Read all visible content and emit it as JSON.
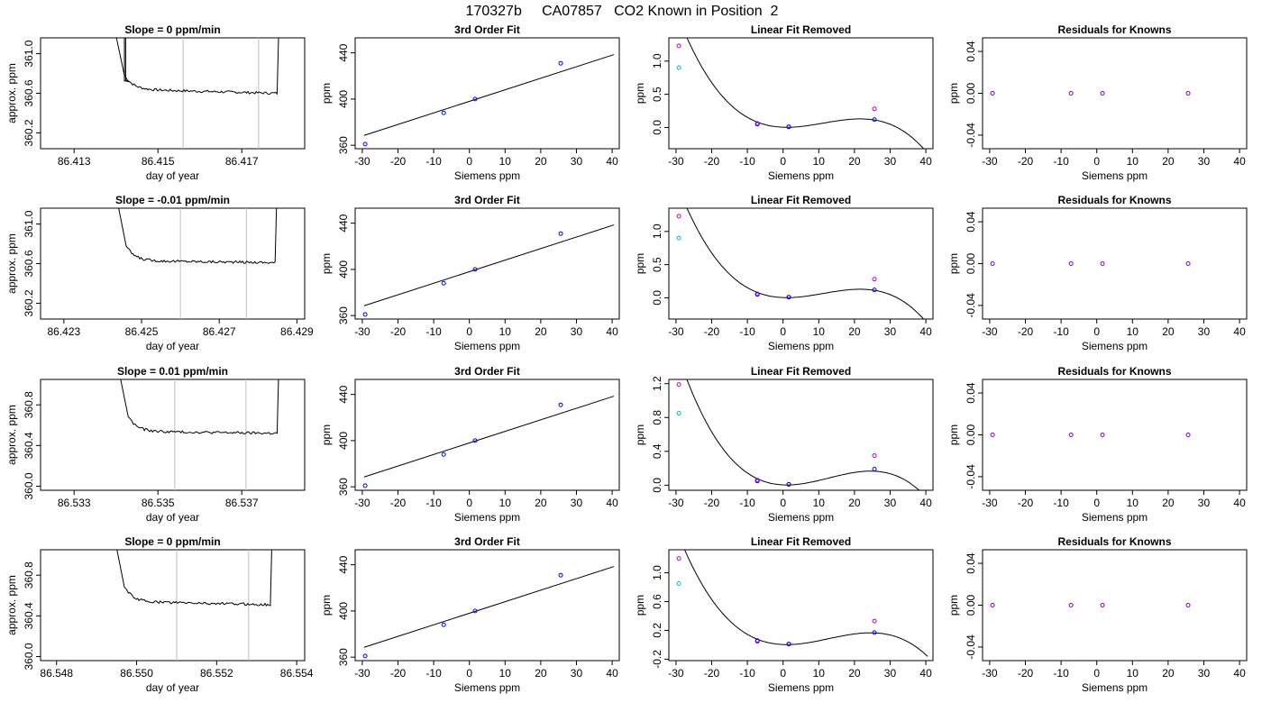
{
  "figure_title": "170327b     CA07857   CO2 Known in Position  2",
  "colors": {
    "line": "#000000",
    "blue": "#0000ff",
    "cyan": "#00bcd4",
    "magenta": "#c000c0",
    "purple": "#7a00d0",
    "gray": "#bebebe"
  },
  "chart_data": [
    {
      "type": "line",
      "row": 1,
      "panel": "trace",
      "title": "Slope =  0  ppm/min",
      "xlabel": "day of year",
      "ylabel": "approx. ppm",
      "xlim": [
        86.4122,
        86.4185
      ],
      "ylim": [
        360.04,
        361.16
      ],
      "xticks": [
        86.413,
        86.415,
        86.417
      ],
      "xtick_labels": [
        "86.413",
        "86.415",
        "86.417"
      ],
      "yticks": [
        360.2,
        360.6,
        361.0
      ],
      "ytick_labels": [
        "360.2",
        "360.6",
        "361.0"
      ],
      "vlines": [
        86.4156,
        86.4174
      ],
      "trace": {
        "x_start": 86.414,
        "x_end": 86.4179,
        "level": 360.61,
        "drift_start": 0.03,
        "drift_end": -0.01,
        "spike_x": 86.4142
      }
    },
    {
      "type": "line",
      "row": 1,
      "panel": "fit",
      "title": "3rd Order Fit",
      "xlabel": "Siemens ppm",
      "ylabel": "ppm",
      "xlim": [
        -32,
        42
      ],
      "ylim": [
        357,
        453
      ],
      "xticks": [
        -30,
        -20,
        -10,
        0,
        10,
        20,
        30,
        40
      ],
      "xtick_labels": [
        "-30",
        "-20",
        "-10",
        "0",
        "10",
        "20",
        "30",
        "40"
      ],
      "yticks": [
        360,
        400,
        440
      ],
      "ytick_labels": [
        "360",
        "400",
        "440"
      ],
      "line": {
        "slope": 1.0,
        "intercept": 398,
        "x_from": -29.5,
        "x_to": 40.5
      },
      "points": [
        {
          "x": -29.2,
          "y": 361
        },
        {
          "x": -7.2,
          "y": 388
        },
        {
          "x": 1.6,
          "y": 400
        },
        {
          "x": 25.6,
          "y": 431
        }
      ]
    },
    {
      "type": "line",
      "row": 1,
      "panel": "residual_curve",
      "title": "Linear Fit Removed",
      "xlabel": "Siemens ppm",
      "ylabel": "ppm",
      "xlim": [
        -32,
        42
      ],
      "ylim": [
        -0.32,
        1.35
      ],
      "xticks": [
        -30,
        -20,
        -10,
        0,
        10,
        20,
        30,
        40
      ],
      "xtick_labels": [
        "-30",
        "-20",
        "-10",
        "0",
        "10",
        "20",
        "30",
        "40"
      ],
      "yticks": [
        0.0,
        0.5,
        1.0
      ],
      "ytick_labels": [
        "0.0",
        "0.5",
        "1.0"
      ],
      "curve": {
        "c0": 0.0035,
        "c1": -0.002,
        "c2": 0.000995,
        "c3": -2.93e-05,
        "x_from": -29.2,
        "x_to": 40.5
      },
      "blue_points": [
        {
          "x": -7.2,
          "y": 0.05
        },
        {
          "x": 1.6,
          "y": 0.01
        },
        {
          "x": 25.6,
          "y": 0.12
        }
      ],
      "magenta_points": [
        {
          "x": -29.2,
          "y": 1.23
        },
        {
          "x": -7.2,
          "y": 0.06
        },
        {
          "x": 1.6,
          "y": 0.01
        },
        {
          "x": 25.6,
          "y": 0.28
        }
      ],
      "cyan_points": [
        {
          "x": -29.2,
          "y": 0.9
        }
      ]
    },
    {
      "type": "scatter",
      "row": 1,
      "panel": "residuals",
      "title": "Residuals for Knowns",
      "xlabel": "Siemens ppm",
      "ylabel": "ppm",
      "xlim": [
        -32,
        42
      ],
      "ylim": [
        -0.053,
        0.053
      ],
      "xticks": [
        -30,
        -20,
        -10,
        0,
        10,
        20,
        30,
        40
      ],
      "xtick_labels": [
        "-30",
        "-20",
        "-10",
        "0",
        "10",
        "20",
        "30",
        "40"
      ],
      "yticks": [
        -0.04,
        0.0,
        0.04
      ],
      "ytick_labels": [
        "-0.04",
        "0.00",
        "0.04"
      ],
      "points": [
        {
          "x": -29.2,
          "y": 0
        },
        {
          "x": -7.2,
          "y": 0
        },
        {
          "x": 1.6,
          "y": 0
        },
        {
          "x": 25.6,
          "y": 0
        }
      ]
    },
    {
      "type": "line",
      "row": 2,
      "panel": "trace",
      "title": "Slope =  -0.01  ppm/min",
      "xlabel": "day of year",
      "ylabel": "approx. ppm",
      "xlim": [
        86.4224,
        86.4292
      ],
      "ylim": [
        360.04,
        361.16
      ],
      "xticks": [
        86.423,
        86.425,
        86.427,
        86.429
      ],
      "xtick_labels": [
        "86.423",
        "86.425",
        "86.427",
        "86.429"
      ],
      "yticks": [
        360.2,
        360.6,
        361.0
      ],
      "ytick_labels": [
        "360.2",
        "360.6",
        "361.0"
      ],
      "vlines": [
        86.426,
        86.4277
      ],
      "trace": {
        "x_start": 86.4244,
        "x_end": 86.4285,
        "level": 360.61,
        "drift_start": 0.02,
        "drift_end": 0.0,
        "spike_x": null
      }
    },
    {
      "type": "line",
      "row": 2,
      "panel": "fit",
      "title": "3rd Order Fit",
      "xlabel": "Siemens ppm",
      "ylabel": "ppm",
      "xlim": [
        -32,
        42
      ],
      "ylim": [
        357,
        453
      ],
      "xticks": [
        -30,
        -20,
        -10,
        0,
        10,
        20,
        30,
        40
      ],
      "xtick_labels": [
        "-30",
        "-20",
        "-10",
        "0",
        "10",
        "20",
        "30",
        "40"
      ],
      "yticks": [
        360,
        400,
        440
      ],
      "ytick_labels": [
        "360",
        "400",
        "440"
      ],
      "line": {
        "slope": 1.0,
        "intercept": 398,
        "x_from": -29.5,
        "x_to": 40.5
      },
      "points": [
        {
          "x": -29.2,
          "y": 361
        },
        {
          "x": -7.2,
          "y": 388
        },
        {
          "x": 1.6,
          "y": 400
        },
        {
          "x": 25.6,
          "y": 431
        }
      ]
    },
    {
      "type": "line",
      "row": 2,
      "panel": "residual_curve",
      "title": "Linear Fit Removed",
      "xlabel": "Siemens ppm",
      "ylabel": "ppm",
      "xlim": [
        -32,
        42
      ],
      "ylim": [
        -0.32,
        1.35
      ],
      "xticks": [
        -30,
        -20,
        -10,
        0,
        10,
        20,
        30,
        40
      ],
      "xtick_labels": [
        "-30",
        "-20",
        "-10",
        "0",
        "10",
        "20",
        "30",
        "40"
      ],
      "yticks": [
        0.0,
        0.5,
        1.0
      ],
      "ytick_labels": [
        "0.0",
        "0.5",
        "1.0"
      ],
      "curve": {
        "c0": 0.0035,
        "c1": -0.002,
        "c2": 0.000995,
        "c3": -2.93e-05,
        "x_from": -29.2,
        "x_to": 40.5
      },
      "blue_points": [
        {
          "x": -7.2,
          "y": 0.05
        },
        {
          "x": 1.6,
          "y": 0.01
        },
        {
          "x": 25.6,
          "y": 0.12
        }
      ],
      "magenta_points": [
        {
          "x": -29.2,
          "y": 1.23
        },
        {
          "x": -7.2,
          "y": 0.06
        },
        {
          "x": 1.6,
          "y": 0.01
        },
        {
          "x": 25.6,
          "y": 0.28
        }
      ],
      "cyan_points": [
        {
          "x": -29.2,
          "y": 0.9
        }
      ]
    },
    {
      "type": "scatter",
      "row": 2,
      "panel": "residuals",
      "title": "Residuals for Knowns",
      "xlabel": "Siemens ppm",
      "ylabel": "ppm",
      "xlim": [
        -32,
        42
      ],
      "ylim": [
        -0.053,
        0.053
      ],
      "xticks": [
        -30,
        -20,
        -10,
        0,
        10,
        20,
        30,
        40
      ],
      "xtick_labels": [
        "-30",
        "-20",
        "-10",
        "0",
        "10",
        "20",
        "30",
        "40"
      ],
      "yticks": [
        -0.04,
        0.0,
        0.04
      ],
      "ytick_labels": [
        "-0.04",
        "0.00",
        "0.04"
      ],
      "points": [
        {
          "x": -29.2,
          "y": 0
        },
        {
          "x": -7.2,
          "y": 0
        },
        {
          "x": 1.6,
          "y": 0
        },
        {
          "x": 25.6,
          "y": 0
        }
      ]
    },
    {
      "type": "line",
      "row": 3,
      "panel": "trace",
      "title": "Slope =  0.01  ppm/min",
      "xlabel": "day of year",
      "ylabel": "approx. ppm",
      "xlim": [
        86.5322,
        86.5385
      ],
      "ylim": [
        359.96,
        361.05
      ],
      "xticks": [
        86.533,
        86.535,
        86.537
      ],
      "xtick_labels": [
        "86.533",
        "86.535",
        "86.537"
      ],
      "yticks": [
        360.0,
        360.4,
        360.8
      ],
      "ytick_labels": [
        "360.0",
        "360.4",
        "360.8"
      ],
      "vlines": [
        86.5354,
        86.5371
      ],
      "trace": {
        "x_start": 86.5341,
        "x_end": 86.5379,
        "level": 360.52,
        "drift_start": 0.02,
        "drift_end": 0.0,
        "spike_x": null
      }
    },
    {
      "type": "line",
      "row": 3,
      "panel": "fit",
      "title": "3rd Order Fit",
      "xlabel": "Siemens ppm",
      "ylabel": "ppm",
      "xlim": [
        -32,
        42
      ],
      "ylim": [
        357,
        453
      ],
      "xticks": [
        -30,
        -20,
        -10,
        0,
        10,
        20,
        30,
        40
      ],
      "xtick_labels": [
        "-30",
        "-20",
        "-10",
        "0",
        "10",
        "20",
        "30",
        "40"
      ],
      "yticks": [
        360,
        400,
        440
      ],
      "ytick_labels": [
        "360",
        "400",
        "440"
      ],
      "line": {
        "slope": 1.0,
        "intercept": 398,
        "x_from": -29.5,
        "x_to": 40.5
      },
      "points": [
        {
          "x": -29.2,
          "y": 361
        },
        {
          "x": -7.2,
          "y": 388
        },
        {
          "x": 1.6,
          "y": 400
        },
        {
          "x": 25.6,
          "y": 431
        }
      ]
    },
    {
      "type": "line",
      "row": 3,
      "panel": "residual_curve",
      "title": "Linear Fit Removed",
      "xlabel": "Siemens ppm",
      "ylabel": "ppm",
      "xlim": [
        -32,
        42
      ],
      "ylim": [
        -0.06,
        1.25
      ],
      "xticks": [
        -30,
        -20,
        -10,
        0,
        10,
        20,
        30,
        40
      ],
      "xtick_labels": [
        "-30",
        "-20",
        "-10",
        "0",
        "10",
        "20",
        "30",
        "40"
      ],
      "yticks": [
        0.0,
        0.4,
        0.8,
        1.2
      ],
      "ytick_labels": [
        "0.0",
        "0.4",
        "0.8",
        "1.2"
      ],
      "curve": {
        "c0": 0.0036,
        "c1": -0.0019,
        "c2": 0.000966,
        "c3": -2.52e-05,
        "x_from": -29.2,
        "x_to": 40.5
      },
      "blue_points": [
        {
          "x": -7.2,
          "y": 0.05
        },
        {
          "x": 1.6,
          "y": 0.01
        },
        {
          "x": 25.6,
          "y": 0.19
        }
      ],
      "magenta_points": [
        {
          "x": -29.2,
          "y": 1.19
        },
        {
          "x": -7.2,
          "y": 0.06
        },
        {
          "x": 1.6,
          "y": 0.01
        },
        {
          "x": 25.6,
          "y": 0.35
        }
      ],
      "cyan_points": [
        {
          "x": -29.2,
          "y": 0.85
        }
      ]
    },
    {
      "type": "scatter",
      "row": 3,
      "panel": "residuals",
      "title": "Residuals for Knowns",
      "xlabel": "Siemens ppm",
      "ylabel": "ppm",
      "xlim": [
        -32,
        42
      ],
      "ylim": [
        -0.053,
        0.053
      ],
      "xticks": [
        -30,
        -20,
        -10,
        0,
        10,
        20,
        30,
        40
      ],
      "xtick_labels": [
        "-30",
        "-20",
        "-10",
        "0",
        "10",
        "20",
        "30",
        "40"
      ],
      "yticks": [
        -0.04,
        0.0,
        0.04
      ],
      "ytick_labels": [
        "-0.04",
        "0.00",
        "0.04"
      ],
      "points": [
        {
          "x": -29.2,
          "y": 0
        },
        {
          "x": -7.2,
          "y": 0
        },
        {
          "x": 1.6,
          "y": 0
        },
        {
          "x": 25.6,
          "y": 0
        }
      ]
    },
    {
      "type": "line",
      "row": 4,
      "panel": "trace",
      "title": "Slope =  0  ppm/min",
      "xlabel": "day of year",
      "ylabel": "approx. ppm",
      "xlim": [
        86.5476,
        86.5542
      ],
      "ylim": [
        359.96,
        361.05
      ],
      "xticks": [
        86.548,
        86.55,
        86.552,
        86.554
      ],
      "xtick_labels": [
        "86.548",
        "86.550",
        "86.552",
        "86.554"
      ],
      "yticks": [
        360.0,
        360.4,
        360.8
      ],
      "ytick_labels": [
        "360.0",
        "360.4",
        "360.8"
      ],
      "vlines": [
        86.551,
        86.5528
      ],
      "trace": {
        "x_start": 86.5495,
        "x_end": 86.5534,
        "level": 360.52,
        "drift_start": 0.02,
        "drift_end": -0.01,
        "spike_x": null
      }
    },
    {
      "type": "line",
      "row": 4,
      "panel": "fit",
      "title": "3rd Order Fit",
      "xlabel": "Siemens ppm",
      "ylabel": "ppm",
      "xlim": [
        -32,
        42
      ],
      "ylim": [
        357,
        453
      ],
      "xticks": [
        -30,
        -20,
        -10,
        0,
        10,
        20,
        30,
        40
      ],
      "xtick_labels": [
        "-30",
        "-20",
        "-10",
        "0",
        "10",
        "20",
        "30",
        "40"
      ],
      "yticks": [
        360,
        400,
        440
      ],
      "ytick_labels": [
        "360",
        "400",
        "440"
      ],
      "line": {
        "slope": 1.0,
        "intercept": 398,
        "x_from": -29.5,
        "x_to": 40.5
      },
      "points": [
        {
          "x": -29.2,
          "y": 361
        },
        {
          "x": -7.2,
          "y": 388
        },
        {
          "x": 1.6,
          "y": 400
        },
        {
          "x": 25.6,
          "y": 431
        }
      ]
    },
    {
      "type": "line",
      "row": 4,
      "panel": "residual_curve",
      "title": "Linear Fit Removed",
      "xlabel": "Siemens ppm",
      "ylabel": "ppm",
      "xlim": [
        -32,
        42
      ],
      "ylim": [
        -0.22,
        1.32
      ],
      "xticks": [
        -30,
        -20,
        -10,
        0,
        10,
        20,
        30,
        40
      ],
      "xtick_labels": [
        "-30",
        "-20",
        "-10",
        "0",
        "10",
        "20",
        "30",
        "40"
      ],
      "yticks": [
        -0.2,
        0.2,
        0.6,
        1.0
      ],
      "ytick_labels": [
        "-0.2",
        "0.2",
        "0.6",
        "1.0"
      ],
      "curve": {
        "c0": 0.0036,
        "c1": -0.0019,
        "c2": 0.000966,
        "c3": -2.52e-05,
        "x_from": -29.2,
        "x_to": 40.5
      },
      "blue_points": [
        {
          "x": -7.2,
          "y": 0.05
        },
        {
          "x": 1.6,
          "y": 0.01
        },
        {
          "x": 25.6,
          "y": 0.17
        }
      ],
      "magenta_points": [
        {
          "x": -29.2,
          "y": 1.2
        },
        {
          "x": -7.2,
          "y": 0.06
        },
        {
          "x": 1.6,
          "y": 0.01
        },
        {
          "x": 25.6,
          "y": 0.33
        }
      ],
      "cyan_points": [
        {
          "x": -29.2,
          "y": 0.85
        }
      ]
    },
    {
      "type": "scatter",
      "row": 4,
      "panel": "residuals",
      "title": "Residuals for Knowns",
      "xlabel": "Siemens ppm",
      "ylabel": "ppm",
      "xlim": [
        -32,
        42
      ],
      "ylim": [
        -0.053,
        0.053
      ],
      "xticks": [
        -30,
        -20,
        -10,
        0,
        10,
        20,
        30,
        40
      ],
      "xtick_labels": [
        "-30",
        "-20",
        "-10",
        "0",
        "10",
        "20",
        "30",
        "40"
      ],
      "yticks": [
        -0.04,
        0.0,
        0.04
      ],
      "ytick_labels": [
        "-0.04",
        "0.00",
        "0.04"
      ],
      "points": [
        {
          "x": -29.2,
          "y": 0
        },
        {
          "x": -7.2,
          "y": 0
        },
        {
          "x": 1.6,
          "y": 0
        },
        {
          "x": 25.6,
          "y": 0
        }
      ]
    }
  ]
}
